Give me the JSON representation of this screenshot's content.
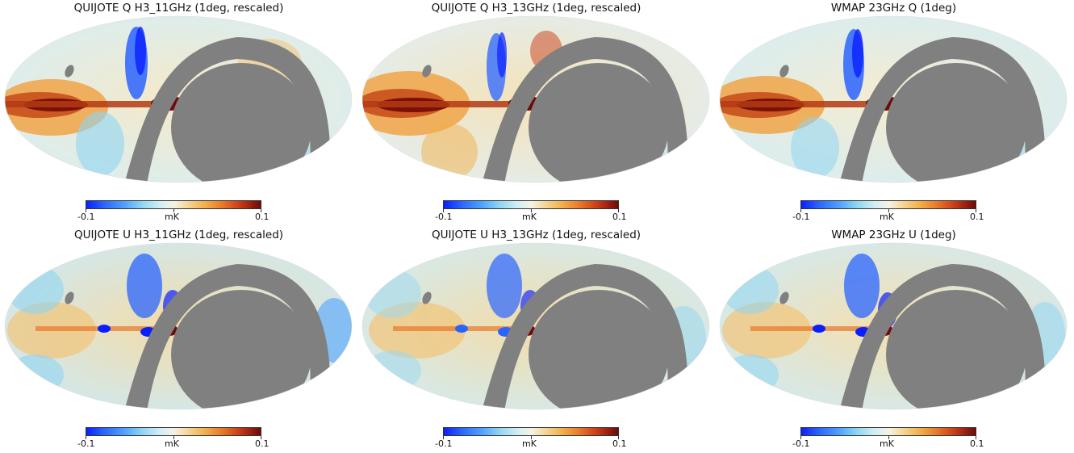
{
  "panels": [
    {
      "title": "QUIJOTE Q H3_11GHz (1deg, rescaled)",
      "colorbar": {
        "min_label": "-0.1",
        "max_label": "0.1",
        "unit": "mK"
      }
    },
    {
      "title": "QUIJOTE Q H3_13GHz (1deg, rescaled)",
      "colorbar": {
        "min_label": "-0.1",
        "max_label": "0.1",
        "unit": "mK"
      }
    },
    {
      "title": "WMAP 23GHz Q (1deg)",
      "colorbar": {
        "min_label": "-0.1",
        "max_label": "0.1",
        "unit": "mK"
      }
    },
    {
      "title": "QUIJOTE U H3_11GHz (1deg, rescaled)",
      "colorbar": {
        "min_label": "-0.1",
        "max_label": "0.1",
        "unit": "mK"
      }
    },
    {
      "title": "QUIJOTE U H3_13GHz (1deg, rescaled)",
      "colorbar": {
        "min_label": "-0.1",
        "max_label": "0.1",
        "unit": "mK"
      }
    },
    {
      "title": "WMAP 23GHz U (1deg)",
      "colorbar": {
        "min_label": "-0.1",
        "max_label": "0.1",
        "unit": "mK"
      }
    }
  ],
  "colors": {
    "masked": "#808080",
    "negative_extreme": "#0a1fff",
    "neutral": "#f6f3e4",
    "positive_extreme": "#6e0a0a"
  }
}
